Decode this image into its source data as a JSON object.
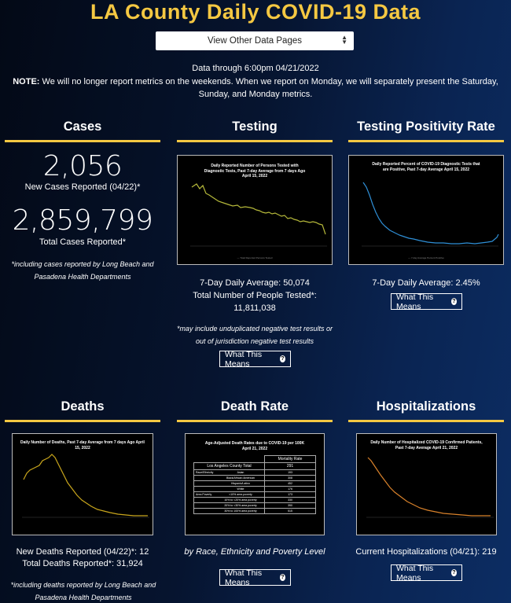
{
  "header": {
    "title": "LA County Daily COVID-19 Data",
    "select_label": "View Other Data Pages",
    "data_through": "Data through 6:00pm 04/21/2022",
    "note_label": "NOTE:",
    "note_text": " We will no longer report metrics on the weekends. When we report on Monday, we will separately present the Saturday, Sunday, and Monday metrics."
  },
  "cases": {
    "heading": "Cases",
    "new_cases": "2,056",
    "new_cases_label": "New Cases Reported (04/22)*",
    "total_cases": "2,859,799",
    "total_cases_label": "Total Cases Reported*",
    "footnote": "*including cases reported by Long Beach and Pasadena Health Departments"
  },
  "testing": {
    "heading": "Testing",
    "chart_title": "Daily Reported Number of Persons Tested with Diagnostic Tests, Past 7-day Average from 7 days Ago April 15, 2022",
    "avg": "7-Day Daily Average: 50,074",
    "total_label": "Total Number of People Tested*:",
    "total": "11,811,038",
    "footnote": "*may include unduplicated negative test results or out of jurisdiction negative test results",
    "button": "What This Means"
  },
  "positivity": {
    "heading": "Testing Positivity Rate",
    "chart_title": "Daily Reported Percent of COVID-19 Diagnostic Tests that are Positive, Past 7-day Average April 15, 2022",
    "avg": "7-Day Daily Average: 2.45%",
    "button": "What This Means"
  },
  "deaths": {
    "heading": "Deaths",
    "chart_title": "Daily Number of Deaths, Past 7-day Average from 7 days Ago April 15, 2022",
    "new": "New Deaths Reported (04/22)*: 12",
    "total": "Total Deaths Reported*: 31,924",
    "footnote": "*including deaths reported by Long Beach and Pasadena Health Departments"
  },
  "death_rate": {
    "heading": "Death Rate",
    "chart_title": "Age-Adjusted Death Rates due to COVID-19 per 100K April 21, 2022",
    "col_header": "Mortality Rate",
    "rows": [
      {
        "group": "Los Angeles County Total",
        "sub": "",
        "value": "291"
      },
      {
        "group": "Race/Ethnicity",
        "sub": "Asian",
        "value": "193"
      },
      {
        "group": "",
        "sub": "Black/African American",
        "value": "308"
      },
      {
        "group": "",
        "sub": "Hispanic/Latino",
        "value": "452"
      },
      {
        "group": "",
        "sub": "White",
        "value": "176"
      },
      {
        "group": "Area Poverty",
        "sub": "<10% area poverty",
        "value": "173"
      },
      {
        "group": "",
        "sub": "10% to <20% area poverty",
        "value": "330"
      },
      {
        "group": "",
        "sub": "20% to <30% area poverty",
        "value": "390"
      },
      {
        "group": "",
        "sub": "30% to 100% area poverty",
        "value": "515"
      }
    ],
    "caption": "by Race, Ethnicity and Poverty Level",
    "button": "What This Means"
  },
  "hospitalizations": {
    "heading": "Hospitalizations",
    "chart_title": "Daily Number of Hospitalized COVID-19 Confirmed Patients, Past 7-day Average April 21, 2022",
    "current": "Current Hospitalizations (04/21): 219",
    "button": "What This Means"
  },
  "colors": {
    "accent": "#f5c842",
    "testing_line": "#b5b83a",
    "positivity_line": "#2f8fd6",
    "deaths_line": "#c9a61c",
    "hosp_line": "#d9822b"
  }
}
